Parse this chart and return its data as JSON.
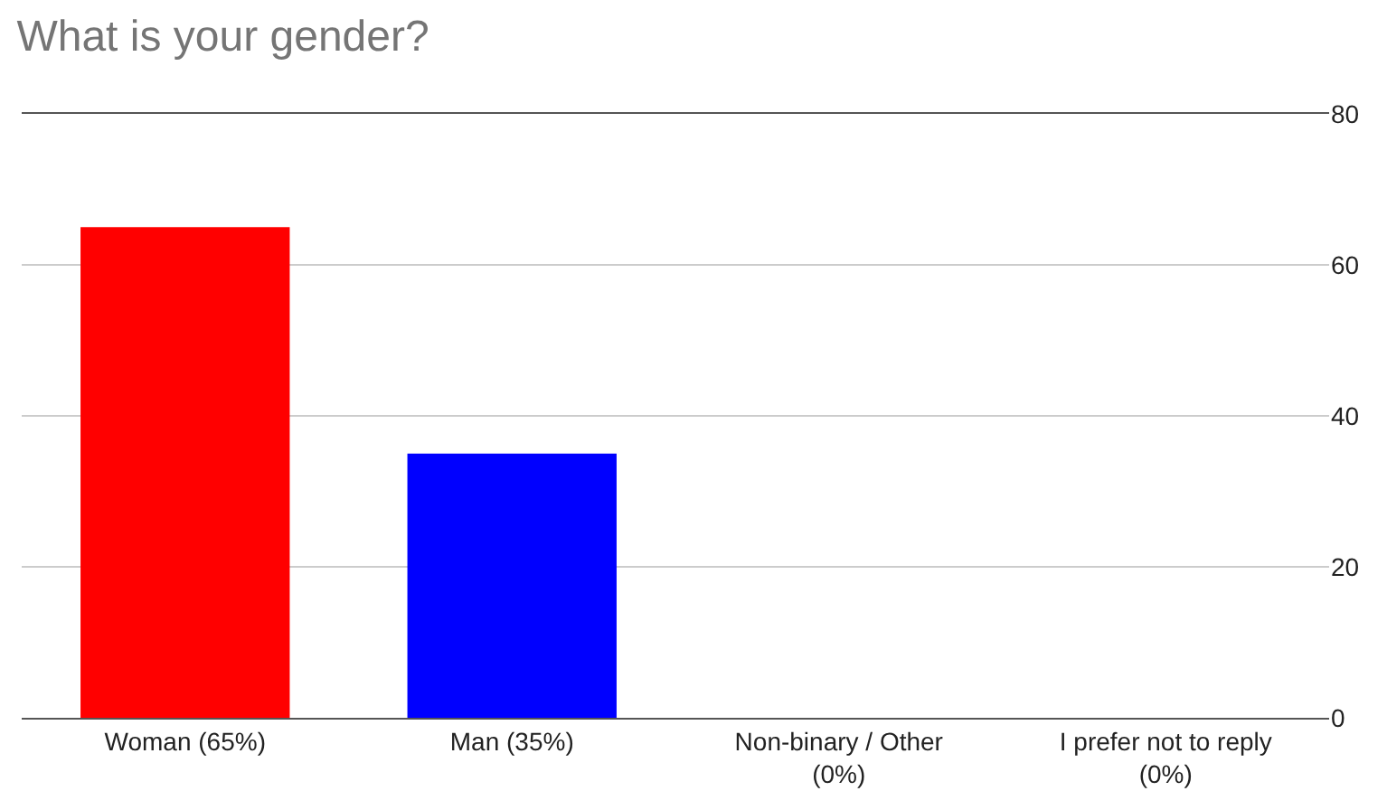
{
  "chart_data": {
    "type": "bar",
    "title": "What is your gender?",
    "categories": [
      "Woman (65%)",
      "Man (35%)",
      "Non-binary / Other\n(0%)",
      "I prefer not to reply\n(0%)"
    ],
    "values": [
      65,
      35,
      0,
      0
    ],
    "colors": [
      "#ff0000",
      "#0000ff",
      "#ff9900",
      "#109618"
    ],
    "ylim": [
      0,
      80
    ],
    "yticks": [
      0,
      20,
      40,
      60,
      80
    ],
    "grid": "y"
  }
}
